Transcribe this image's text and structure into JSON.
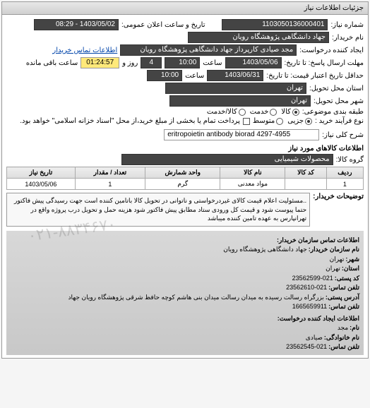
{
  "panel_title": "جزئیات اطلاعات نیاز",
  "request_number_label": "شماره نیاز:",
  "request_number": "1103050136000401",
  "announce_date_label": "تاریخ و ساعت اعلان عمومی:",
  "announce_date": "1403/05/02 - 08:29",
  "buyer_name_label": "نام خریدار:",
  "buyer_name": "جهاد دانشگاهی پژوهشگاه رویان",
  "requester_label": "ایجاد کننده درخواست:",
  "requester": "مجد صیادی کارپرداز جهاد دانشگاهی پژوهشگاه رویان",
  "buyer_contact_label": "اطلاعات تماس خریدار",
  "deadline_label": "مهلت ارسال پاسخ: تا تاریخ:",
  "deadline_date": "1403/05/06",
  "deadline_time_label": "ساعت",
  "deadline_time": "10:00",
  "remaining_days": "4",
  "remaining_days_label": "روز و",
  "remaining_time": "01:24:57",
  "remaining_suffix": "ساعت باقی مانده",
  "validity_label": "حداقل تاریخ اعتبار قیمت: تا تاریخ:",
  "validity_date": "1403/06/31",
  "validity_time_label": "ساعت",
  "validity_time": "10:00",
  "delivery_province_label": "استان محل تحویل:",
  "delivery_province": "تهران",
  "delivery_city_label": "شهر محل تحویل:",
  "delivery_city": "تهران",
  "subject_type_label": "طبقه بندی موضوعی:",
  "radio_goods": "کالا",
  "radio_service": "خدمت",
  "radio_both": "کالا/خدمت",
  "payment_type_label": "نوع فرآیند خرید :",
  "radio_spot": "جزیی",
  "radio_medium": "متوسط",
  "payment_note_label": "پرداخت تمام یا بخشی از مبلغ خرید،از محل \"اسناد خزانه اسلامی\" خواهد بود.",
  "desc_label": "شرح کلی نیاز:",
  "desc_value": "eritropoietin antibody biorad 4297-4955",
  "items_title": "اطلاعات کالاهای مورد نیاز",
  "group_label": "گروه کالا:",
  "group_value": "محصولات شیمیایی",
  "table": {
    "headers": [
      "ردیف",
      "کد کالا",
      "نام کالا",
      "واحد شمارش",
      "تعداد / مقدار",
      "تاریخ نیاز"
    ],
    "rows": [
      [
        "1",
        "",
        "مواد معدنی",
        "گرم",
        "1",
        "1403/05/06"
      ]
    ]
  },
  "buyer_notes_label": "توضیحات خریدار:",
  "buyer_notes": "..مسئولیت اعلام قیمت کالای غیردرخواستی و ناتوانی در تحویل کالا باتامین کننده است جهت رسیدگی پیش فاکتور حتما پیوست شود و قیمت کل ورودی ستاد مطابق پیش فاکتور شود هزینه حمل و تحویل درب پروژه واقع در تهرانپارس به عهده تامین کننده میباشد",
  "org_contact_title": "اطلاعات تماس سازمان خریدار:",
  "org_name_label": "نام سازمان خریدار:",
  "org_name": "جهاد دانشگاهی پژوهشگاه رویان",
  "org_city_label": "شهر:",
  "org_city": "تهران",
  "org_province_label": "استان:",
  "org_province": "تهران",
  "org_postal_label": "کد پستی:",
  "org_postal": "23562599-021",
  "org_phone_label": "تلفن تماس:",
  "org_phone": "23562610-021",
  "org_address_label": "آدرس پستی:",
  "org_address": "بزرگراه رسالت رسیده به میدان رسالت میدان بنی هاشم کوچه حافظ شرقی پژوهشگاه رویان جهاد",
  "org_fax_label": "تلفن تماس:",
  "org_fax": "1665659911",
  "creator_title": "اطلاعات ایجاد کننده درخواست:",
  "creator_fname_label": "نام:",
  "creator_fname": "مجد",
  "creator_lname_label": "نام خانوادگی:",
  "creator_lname": "صیادی",
  "creator_phone_label": "تلفن تماس:",
  "creator_phone": "23562545-021",
  "watermark": "۰۲۱-۸۸۳۴۶۷۰",
  "colors": {
    "panel_border": "#999999",
    "header_bg_start": "#e8e8e8",
    "header_bg_end": "#d0d0d0",
    "field_dark_bg": "#444444",
    "countdown_bg": "#ffe97a"
  }
}
